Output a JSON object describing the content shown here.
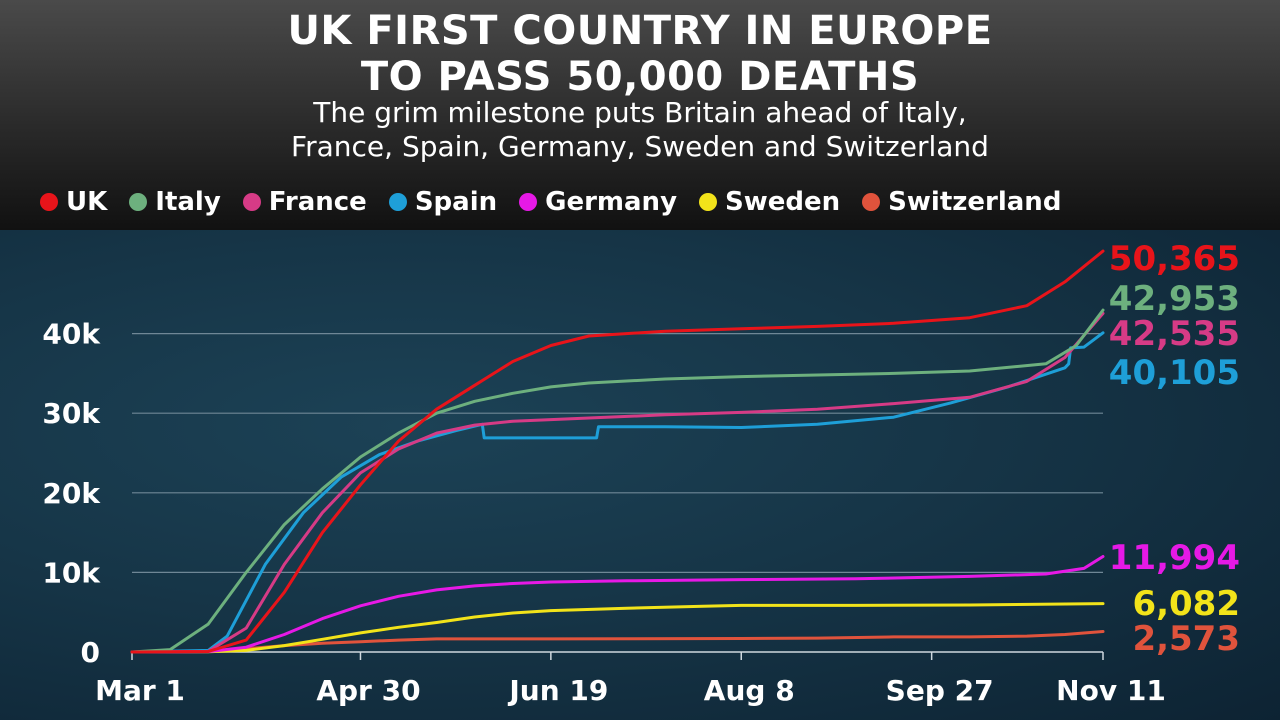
{
  "header": {
    "title_line1": "UK FIRST COUNTRY IN EUROPE",
    "title_line2": "TO PASS 50,000 DEATHS",
    "subtitle_line1": "The grim milestone puts Britain ahead of Italy,",
    "subtitle_line2": "France, Spain, Germany, Sweden and Switzerland"
  },
  "legend": [
    {
      "name": "UK",
      "color": "#e8141a"
    },
    {
      "name": "Italy",
      "color": "#6db07e"
    },
    {
      "name": "France",
      "color": "#d63b86"
    },
    {
      "name": "Spain",
      "color": "#1e9fd8"
    },
    {
      "name": "Germany",
      "color": "#e619e6"
    },
    {
      "name": "Sweden",
      "color": "#f2e31a"
    },
    {
      "name": "Switzerland",
      "color": "#e0533c"
    }
  ],
  "chart_data": {
    "type": "line",
    "title": "UK FIRST COUNTRY IN EUROPE TO PASS 50,000 DEATHS",
    "subtitle": "The grim milestone puts Britain ahead of Italy, France, Spain, Germany, Sweden and Switzerland",
    "x_ticks": [
      "Mar 1",
      "Apr 30",
      "Jun 19",
      "Aug 8",
      "Sep 27",
      "Nov 11"
    ],
    "x_tick_days": [
      0,
      60,
      110,
      160,
      210,
      255
    ],
    "y_ticks": [
      "0",
      "10k",
      "20k",
      "30k",
      "40k"
    ],
    "y_tick_values": [
      0,
      10000,
      20000,
      30000,
      40000
    ],
    "ylim": [
      0,
      50000
    ],
    "grid": true,
    "legend_position": "top",
    "series": [
      {
        "name": "UK",
        "color": "#e8141a",
        "label": "50,365",
        "points": [
          [
            0,
            0
          ],
          [
            20,
            60
          ],
          [
            30,
            1500
          ],
          [
            40,
            7500
          ],
          [
            50,
            15000
          ],
          [
            60,
            21000
          ],
          [
            70,
            26500
          ],
          [
            80,
            30500
          ],
          [
            90,
            33500
          ],
          [
            100,
            36500
          ],
          [
            110,
            38500
          ],
          [
            120,
            39700
          ],
          [
            140,
            40300
          ],
          [
            160,
            40600
          ],
          [
            180,
            40900
          ],
          [
            200,
            41300
          ],
          [
            220,
            42000
          ],
          [
            235,
            43500
          ],
          [
            245,
            46500
          ],
          [
            255,
            50365
          ]
        ]
      },
      {
        "name": "Italy",
        "color": "#6db07e",
        "label": "42,953",
        "points": [
          [
            0,
            0
          ],
          [
            10,
            300
          ],
          [
            20,
            3500
          ],
          [
            30,
            10000
          ],
          [
            40,
            16000
          ],
          [
            50,
            20500
          ],
          [
            60,
            24500
          ],
          [
            70,
            27500
          ],
          [
            80,
            30000
          ],
          [
            90,
            31500
          ],
          [
            100,
            32500
          ],
          [
            110,
            33300
          ],
          [
            120,
            33800
          ],
          [
            140,
            34300
          ],
          [
            160,
            34600
          ],
          [
            180,
            34800
          ],
          [
            200,
            35000
          ],
          [
            220,
            35300
          ],
          [
            240,
            36200
          ],
          [
            248,
            38500
          ],
          [
            255,
            42953
          ]
        ]
      },
      {
        "name": "France",
        "color": "#d63b86",
        "label": "42,535",
        "points": [
          [
            0,
            0
          ],
          [
            20,
            80
          ],
          [
            30,
            3000
          ],
          [
            40,
            11000
          ],
          [
            50,
            17500
          ],
          [
            60,
            22500
          ],
          [
            70,
            25500
          ],
          [
            80,
            27500
          ],
          [
            90,
            28500
          ],
          [
            100,
            29000
          ],
          [
            110,
            29200
          ],
          [
            120,
            29400
          ],
          [
            140,
            29800
          ],
          [
            160,
            30100
          ],
          [
            180,
            30500
          ],
          [
            200,
            31200
          ],
          [
            220,
            32000
          ],
          [
            235,
            34000
          ],
          [
            245,
            37000
          ],
          [
            255,
            42535
          ]
        ]
      },
      {
        "name": "Spain",
        "color": "#1e9fd8",
        "label": "40,105",
        "points": [
          [
            0,
            0
          ],
          [
            20,
            200
          ],
          [
            25,
            2000
          ],
          [
            35,
            11000
          ],
          [
            45,
            17500
          ],
          [
            55,
            22000
          ],
          [
            65,
            24800
          ],
          [
            75,
            26500
          ],
          [
            85,
            27800
          ],
          [
            92,
            28600
          ],
          [
            92.5,
            26900
          ],
          [
            110,
            26900
          ],
          [
            122,
            26900
          ],
          [
            122.5,
            28300
          ],
          [
            140,
            28300
          ],
          [
            160,
            28200
          ],
          [
            180,
            28600
          ],
          [
            200,
            29500
          ],
          [
            215,
            31300
          ],
          [
            230,
            33300
          ],
          [
            245,
            35700
          ],
          [
            246,
            36200
          ],
          [
            246.5,
            38200
          ],
          [
            250,
            38300
          ],
          [
            255,
            40105
          ]
        ]
      },
      {
        "name": "Germany",
        "color": "#e619e6",
        "label": "11,994",
        "points": [
          [
            0,
            0
          ],
          [
            20,
            50
          ],
          [
            30,
            600
          ],
          [
            40,
            2200
          ],
          [
            50,
            4200
          ],
          [
            60,
            5800
          ],
          [
            70,
            7000
          ],
          [
            80,
            7800
          ],
          [
            90,
            8300
          ],
          [
            100,
            8600
          ],
          [
            110,
            8800
          ],
          [
            130,
            8950
          ],
          [
            160,
            9100
          ],
          [
            190,
            9200
          ],
          [
            220,
            9500
          ],
          [
            240,
            9800
          ],
          [
            250,
            10500
          ],
          [
            255,
            11994
          ]
        ]
      },
      {
        "name": "Sweden",
        "color": "#f2e31a",
        "label": "6,082",
        "points": [
          [
            0,
            0
          ],
          [
            20,
            30
          ],
          [
            30,
            200
          ],
          [
            40,
            800
          ],
          [
            50,
            1600
          ],
          [
            60,
            2400
          ],
          [
            70,
            3100
          ],
          [
            80,
            3700
          ],
          [
            90,
            4400
          ],
          [
            100,
            4900
          ],
          [
            110,
            5200
          ],
          [
            130,
            5500
          ],
          [
            150,
            5750
          ],
          [
            160,
            5850
          ],
          [
            190,
            5850
          ],
          [
            220,
            5900
          ],
          [
            255,
            6082
          ]
        ]
      },
      {
        "name": "Switzerland",
        "color": "#e0533c",
        "label": "2,573",
        "points": [
          [
            0,
            0
          ],
          [
            20,
            100
          ],
          [
            30,
            400
          ],
          [
            40,
            800
          ],
          [
            50,
            1100
          ],
          [
            60,
            1300
          ],
          [
            70,
            1500
          ],
          [
            80,
            1650
          ],
          [
            90,
            1650
          ],
          [
            110,
            1650
          ],
          [
            160,
            1700
          ],
          [
            180,
            1750
          ],
          [
            200,
            1900
          ],
          [
            220,
            1900
          ],
          [
            235,
            2000
          ],
          [
            245,
            2200
          ],
          [
            255,
            2573
          ]
        ]
      }
    ]
  }
}
